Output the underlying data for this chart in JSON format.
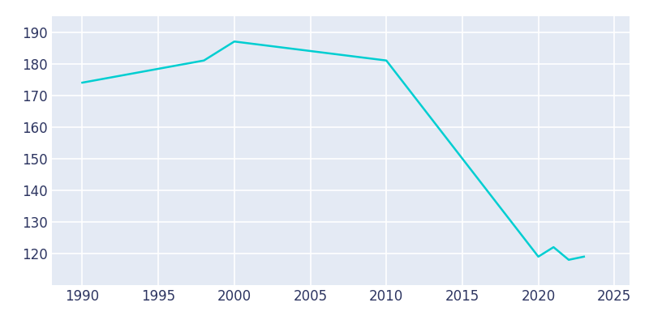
{
  "years": [
    1990,
    1998,
    2000,
    2005,
    2010,
    2020,
    2021,
    2022,
    2023
  ],
  "population": [
    174,
    181,
    187,
    184,
    181,
    119,
    122,
    118,
    119
  ],
  "line_color": "#00CED1",
  "line_width": 1.8,
  "fig_bg_color": "#FFFFFF",
  "plot_bg_color": "#E4EAF4",
  "grid_color": "#FFFFFF",
  "xlim": [
    1988,
    2026
  ],
  "ylim": [
    110,
    195
  ],
  "yticks": [
    120,
    130,
    140,
    150,
    160,
    170,
    180,
    190
  ],
  "xticks": [
    1990,
    1995,
    2000,
    2005,
    2010,
    2015,
    2020,
    2025
  ],
  "tick_label_color": "#2D3561",
  "tick_fontsize": 12
}
